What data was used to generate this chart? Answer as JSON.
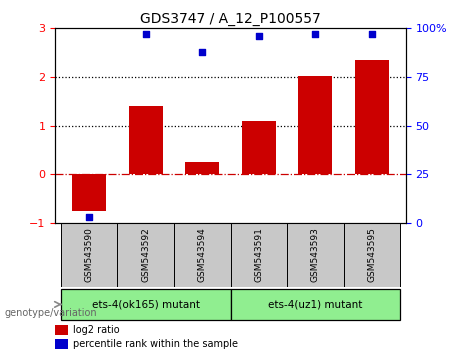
{
  "title": "GDS3747 / A_12_P100557",
  "categories": [
    "GSM543590",
    "GSM543592",
    "GSM543594",
    "GSM543591",
    "GSM543593",
    "GSM543595"
  ],
  "log2_ratios": [
    -0.75,
    1.4,
    0.25,
    1.1,
    2.02,
    2.35
  ],
  "percentile_ranks": [
    3,
    97,
    88,
    96,
    97,
    97
  ],
  "bar_color": "#cc0000",
  "dot_color": "#0000cc",
  "ylim_left": [
    -1,
    3
  ],
  "ylim_right": [
    0,
    100
  ],
  "yticks_left": [
    -1,
    0,
    1,
    2,
    3
  ],
  "yticks_right": [
    0,
    25,
    50,
    75,
    100
  ],
  "hlines": [
    0,
    1,
    2
  ],
  "hline_styles": [
    "dashdot",
    "dotted",
    "dotted"
  ],
  "hline_colors": [
    "#cc0000",
    "#000000",
    "#000000"
  ],
  "group1_label": "ets-4(ok165) mutant",
  "group2_label": "ets-4(uz1) mutant",
  "group1_indices": [
    0,
    1,
    2
  ],
  "group2_indices": [
    3,
    4,
    5
  ],
  "group_bg_color": "#90ee90",
  "sample_bg_color": "#c8c8c8",
  "legend_log2_label": "log2 ratio",
  "legend_percentile_label": "percentile rank within the sample",
  "genotype_label": "genotype/variation",
  "bar_width": 0.6
}
